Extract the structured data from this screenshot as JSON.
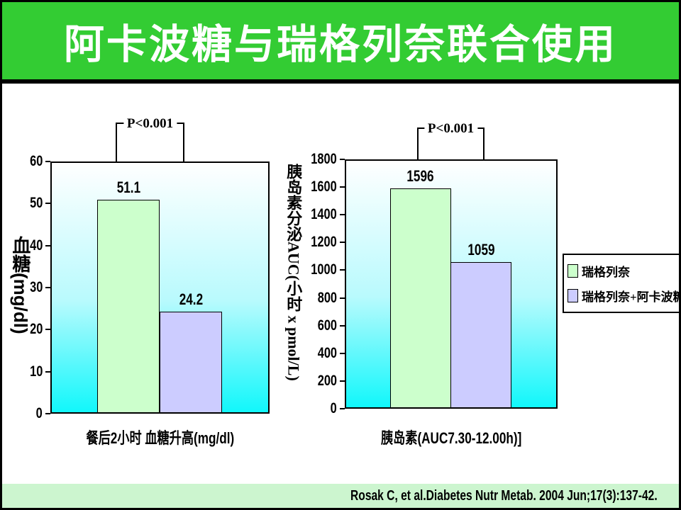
{
  "slide": {
    "title": "阿卡波糖与瑞格列奈联合使用",
    "citation": "Rosak C, et al.Diabetes Nutr Metab. 2004 Jun;17(3):137-42."
  },
  "colors": {
    "title_bar_green": "#33cc33",
    "citation_bar_green": "#ccf5cf",
    "plot_gradient_top": "#ffffff",
    "plot_gradient_mid": "#b9fafd",
    "plot_gradient_bottom": "#11f7fb",
    "bar_green": "#ccffcc",
    "bar_purple": "#ccccff"
  },
  "legend": {
    "items": [
      {
        "label": "瑞格列奈",
        "color": "#ccffcc"
      },
      {
        "label": "瑞格列奈+阿卡波糖",
        "color": "#ccccff"
      }
    ]
  },
  "chart_data": [
    {
      "type": "bar",
      "title": "",
      "categories": [
        "瑞格列奈",
        "瑞格列奈+阿卡波糖"
      ],
      "values": [
        51.1,
        24.2
      ],
      "ylabel": "血糖(mg/dl)",
      "xlabel": "餐后2小时 血糖升高(mg/dl)",
      "ylim": [
        0,
        60
      ],
      "yticks": [
        0,
        10,
        20,
        30,
        40,
        50,
        60
      ],
      "annotation": "P<0.001",
      "bar_colors": [
        "#ccffcc",
        "#ccccff"
      ],
      "grid": false,
      "legend_position": "none"
    },
    {
      "type": "bar",
      "title": "",
      "categories": [
        "瑞格列奈",
        "瑞格列奈+阿卡波糖"
      ],
      "values": [
        1596,
        1059
      ],
      "ylabel": "胰岛素分泌AUC(小时 x pmol/L)",
      "xlabel": "胰岛素(AUC7.30-12.00h)]",
      "ylim": [
        0,
        1800
      ],
      "yticks": [
        0,
        200,
        400,
        600,
        800,
        1000,
        1200,
        1400,
        1600,
        1800
      ],
      "annotation": "P<0.001",
      "bar_colors": [
        "#ccffcc",
        "#ccccff"
      ],
      "grid": false,
      "legend_position": "right"
    }
  ]
}
